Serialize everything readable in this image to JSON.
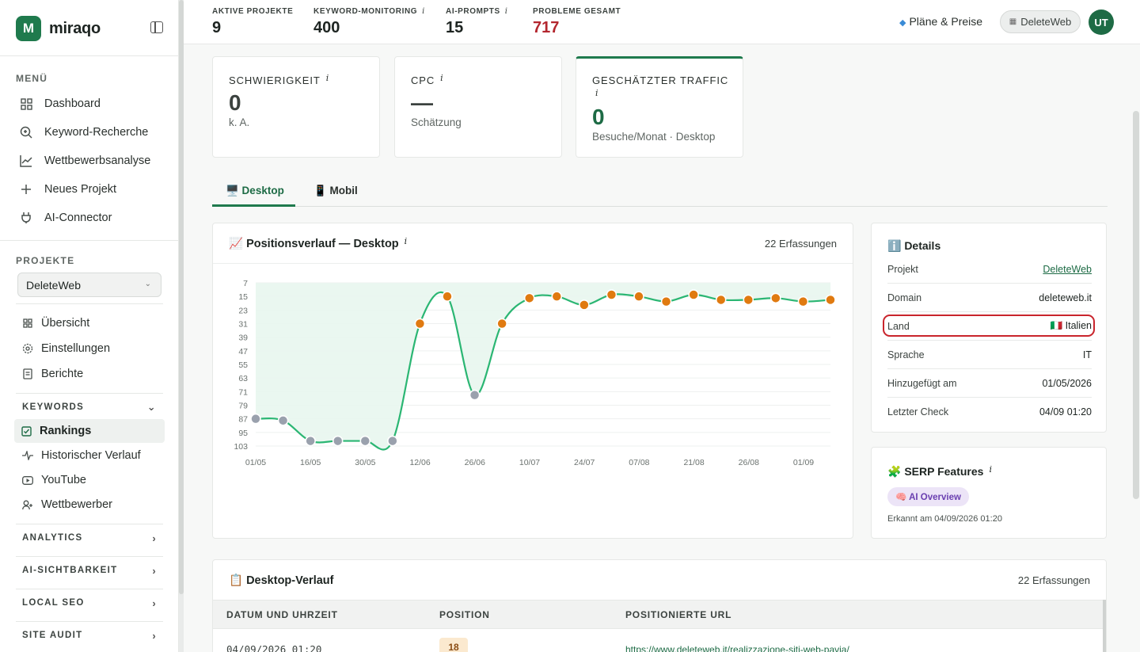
{
  "brand": {
    "name": "miraqo",
    "logo_letter": "M"
  },
  "sidebar": {
    "menu_label": "MENÜ",
    "menu_items": [
      {
        "label": "Dashboard",
        "icon": "grid-icon"
      },
      {
        "label": "Keyword-Recherche",
        "icon": "search-icon"
      },
      {
        "label": "Wettbewerbsanalyse",
        "icon": "chart-line-icon"
      },
      {
        "label": "Neues Projekt",
        "icon": "plus-icon"
      },
      {
        "label": "AI-Connector",
        "icon": "plug-icon"
      }
    ],
    "projects_label": "PROJEKTE",
    "project_selected": "DeleteWeb",
    "project_items": [
      {
        "label": "Übersicht",
        "icon": "grid-icon"
      },
      {
        "label": "Einstellungen",
        "icon": "gear-icon"
      },
      {
        "label": "Berichte",
        "icon": "document-icon"
      }
    ],
    "keywords_label": "KEYWORDS",
    "keyword_items": [
      {
        "label": "Rankings",
        "icon": "checklist-icon"
      },
      {
        "label": "Historischer Verlauf",
        "icon": "pulse-icon"
      },
      {
        "label": "YouTube",
        "icon": "youtube-icon"
      },
      {
        "label": "Wettbewerber",
        "icon": "users-icon"
      }
    ],
    "groups": [
      "ANALYTICS",
      "AI-SICHTBARKEIT",
      "LOCAL SEO",
      "SITE AUDIT"
    ]
  },
  "topbar": {
    "stats": [
      {
        "label": "AKTIVE PROJEKTE",
        "value": "9",
        "info": ""
      },
      {
        "label": "KEYWORD-MONITORING",
        "value": "400",
        "info": "i"
      },
      {
        "label": "AI-PROMPTS",
        "value": "15",
        "info": "i"
      },
      {
        "label": "PROBLEME GESAMT",
        "value": "717",
        "info": ""
      }
    ],
    "plans_label": "Pläne & Preise",
    "project_pill": "DeleteWeb",
    "avatar_initials": "UT"
  },
  "metrics": [
    {
      "title": "SCHWIERIGKEIT",
      "value": "0",
      "sub": "k. A."
    },
    {
      "title": "CPC",
      "value": "—",
      "sub": "Schätzung"
    },
    {
      "title": "GESCHÄTZTER TRAFFIC",
      "value": "0",
      "sub": "Besuche/Monat · Desktop"
    }
  ],
  "tabs": [
    {
      "label": "🖥️ Desktop",
      "active": true
    },
    {
      "label": "📱 Mobil",
      "active": false
    }
  ],
  "chart_panel": {
    "title": "📈 Positionsverlauf — Desktop",
    "count": "22 Erfassungen"
  },
  "chart_data": {
    "type": "line",
    "title": "Positionsverlauf — Desktop",
    "y_inverted": true,
    "ylim": [
      7,
      103
    ],
    "y_ticks": [
      "7",
      "15",
      "23",
      "31",
      "39",
      "47",
      "55",
      "63",
      "71",
      "79",
      "87",
      "95",
      "103"
    ],
    "x_ticks": [
      "01/05",
      "16/05",
      "30/05",
      "12/06",
      "26/06",
      "10/07",
      "24/07",
      "07/08",
      "21/08",
      "26/08",
      "01/09"
    ],
    "series": [
      {
        "values": [
          87,
          88,
          100,
          100,
          100,
          100,
          31,
          15,
          73,
          31,
          16,
          15,
          20,
          14,
          15,
          18,
          14,
          17,
          17,
          16,
          18,
          17
        ],
        "point_colors_rule": "orange if position <= 50 else gray"
      }
    ],
    "colors": {
      "line": "#2bb673",
      "fill": "#e8f6ee",
      "top_point": "#e07a10",
      "low_point": "#9aa1ad"
    },
    "grid": true
  },
  "details": {
    "title": "ℹ️ Details",
    "rows": [
      {
        "key": "Projekt",
        "value": "DeleteWeb"
      },
      {
        "key": "Domain",
        "value": "deleteweb.it"
      },
      {
        "key": "Land",
        "value": "🇮🇹 Italien"
      },
      {
        "key": "Sprache",
        "value": "IT"
      },
      {
        "key": "Hinzugefügt am",
        "value": "01/05/2026"
      },
      {
        "key": "Letzter Check",
        "value": "04/09 01:20"
      }
    ]
  },
  "serp": {
    "title": "🧩 SERP Features",
    "badge": "🧠 AI Overview",
    "note": "Erkannt am 04/09/2026 01:20"
  },
  "history": {
    "title": "📋 Desktop-Verlauf",
    "count": "22 Erfassungen",
    "columns": [
      "DATUM UND UHRZEIT",
      "POSITION",
      "POSITIONIERTE URL"
    ],
    "rows": [
      {
        "date": "04/09/2026 01:20",
        "position": "18",
        "url": "https://www.deleteweb.it/realizzazione-siti-web-pavia/"
      }
    ]
  }
}
